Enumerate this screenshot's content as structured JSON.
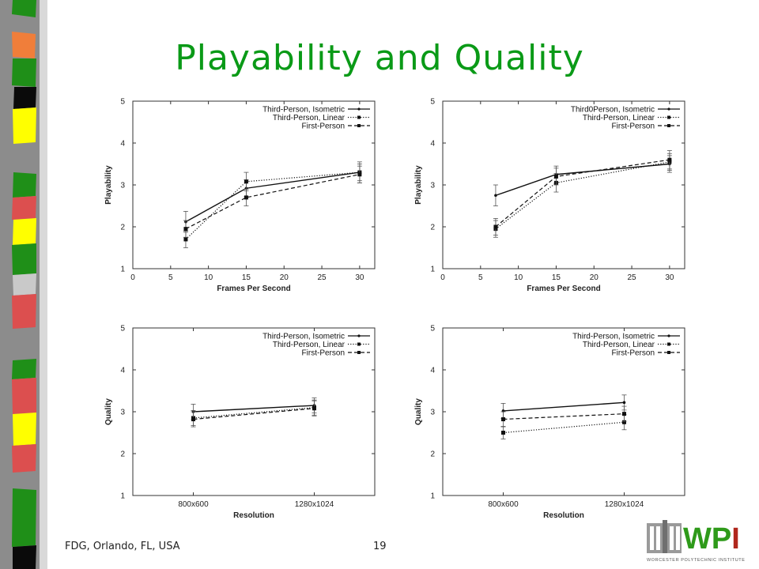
{
  "slide": {
    "title": "Playability and Quality",
    "footer": "FDG, Orlando, FL, USA",
    "page_number": "19",
    "logo_text": "WPI",
    "logo_caption": "WORCESTER POLYTECHNIC INSTITUTE",
    "colors": {
      "title": "#0a9a17",
      "logo_green": "#2e9a1a",
      "logo_red": "#b0271c"
    }
  },
  "chart_data": [
    {
      "type": "line",
      "xlabel": "Frames Per Second",
      "ylabel": "Playability",
      "xlim": [
        0,
        32
      ],
      "ylim": [
        1,
        5
      ],
      "xticks": [
        "0",
        "5",
        "10",
        "15",
        "20",
        "25",
        "30"
      ],
      "yticks": [
        "1",
        "2",
        "3",
        "4",
        "5"
      ],
      "legend_position": "top-right",
      "x": [
        7,
        15,
        30
      ],
      "series": [
        {
          "name": "Third-Person, Isometric",
          "values": [
            2.12,
            2.92,
            3.3
          ],
          "errors": [
            0.25,
            0.2,
            0.2
          ],
          "style": "solid"
        },
        {
          "name": "Third-Person, Linear",
          "values": [
            1.7,
            3.08,
            3.3
          ],
          "errors": [
            0.2,
            0.22,
            0.25
          ],
          "style": "dotted"
        },
        {
          "name": "First-Person",
          "values": [
            1.95,
            2.7,
            3.25
          ],
          "errors": [
            0.2,
            0.2,
            0.2
          ],
          "style": "dashed"
        }
      ]
    },
    {
      "type": "line",
      "xlabel": "Frames Per Second",
      "ylabel": "Playability",
      "xlim": [
        0,
        32
      ],
      "ylim": [
        1,
        5
      ],
      "xticks": [
        "0",
        "5",
        "10",
        "15",
        "20",
        "25",
        "30"
      ],
      "yticks": [
        "1",
        "2",
        "3",
        "4",
        "5"
      ],
      "legend_position": "top-right",
      "x": [
        7,
        15,
        30
      ],
      "series": [
        {
          "name": "Third0Person, Isometric",
          "values": [
            2.75,
            3.25,
            3.5
          ],
          "errors": [
            0.25,
            0.2,
            0.2
          ],
          "style": "solid"
        },
        {
          "name": "Third-Person, Linear",
          "values": [
            1.95,
            3.05,
            3.55
          ],
          "errors": [
            0.2,
            0.22,
            0.2
          ],
          "style": "dotted"
        },
        {
          "name": "First-Person",
          "values": [
            2.0,
            3.2,
            3.6
          ],
          "errors": [
            0.2,
            0.2,
            0.22
          ],
          "style": "dashed"
        }
      ]
    },
    {
      "type": "line",
      "xlabel": "Resolution",
      "ylabel": "Quality",
      "ylim": [
        1,
        5
      ],
      "categories": [
        "800x600",
        "1280x1024"
      ],
      "yticks": [
        "1",
        "2",
        "3",
        "4",
        "5"
      ],
      "legend_position": "top-right",
      "series": [
        {
          "name": "Third-Person, Isometric",
          "values": [
            3.0,
            3.15
          ],
          "errors": [
            0.18,
            0.18
          ],
          "style": "solid"
        },
        {
          "name": "Third-Person, Linear",
          "values": [
            2.85,
            3.1
          ],
          "errors": [
            0.18,
            0.18
          ],
          "style": "dotted"
        },
        {
          "name": "First-Person",
          "values": [
            2.82,
            3.08
          ],
          "errors": [
            0.18,
            0.18
          ],
          "style": "dashed"
        }
      ]
    },
    {
      "type": "line",
      "xlabel": "Resolution",
      "ylabel": "Quality",
      "ylim": [
        1,
        5
      ],
      "categories": [
        "800x600",
        "1280x1024"
      ],
      "yticks": [
        "1",
        "2",
        "3",
        "4",
        "5"
      ],
      "legend_position": "top-right",
      "series": [
        {
          "name": "Third-Person, Isometric",
          "values": [
            3.02,
            3.22
          ],
          "errors": [
            0.18,
            0.18
          ],
          "style": "solid"
        },
        {
          "name": "Third-Person, Linear",
          "values": [
            2.5,
            2.75
          ],
          "errors": [
            0.15,
            0.18
          ],
          "style": "dotted"
        },
        {
          "name": "First-Person",
          "values": [
            2.82,
            2.95
          ],
          "errors": [
            0.18,
            0.18
          ],
          "style": "dashed"
        }
      ]
    }
  ]
}
